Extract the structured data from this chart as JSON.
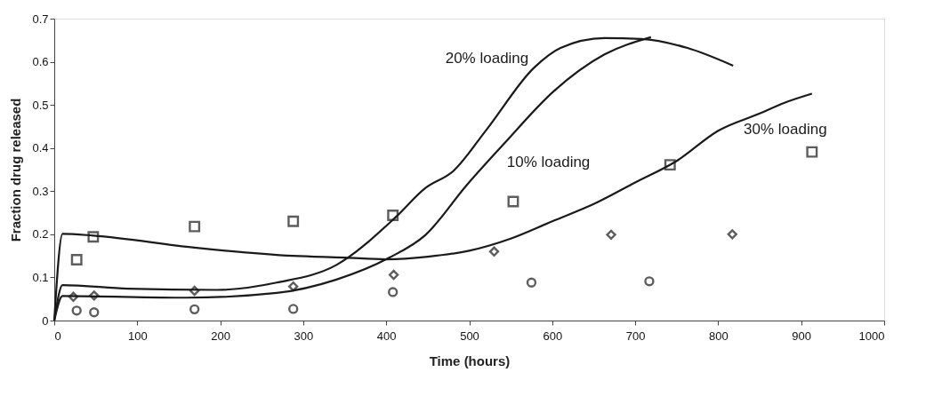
{
  "chart_data": {
    "type": "line",
    "xlabel": "Time (hours)",
    "ylabel": "Fraction drug released",
    "xlim": [
      0,
      1000
    ],
    "xticks": [
      0,
      100,
      200,
      300,
      400,
      500,
      600,
      700,
      800,
      900,
      1000
    ],
    "ylim": [
      0,
      0.7
    ],
    "yticks": [
      0,
      0.1,
      0.2,
      0.3,
      0.4,
      0.5,
      0.6,
      0.7
    ],
    "grid": false,
    "line_style": "solid",
    "series": [
      {
        "name": "20% loading",
        "color": "#1a1a1a",
        "marker": "none",
        "x": [
          0,
          10,
          89,
          196,
          268,
          340,
          411,
          447,
          481,
          521,
          578,
          610,
          663,
          707,
          763,
          818
        ],
        "values": [
          0,
          0.082,
          0.074,
          0.071,
          0.088,
          0.129,
          0.239,
          0.307,
          0.347,
          0.443,
          0.586,
          0.632,
          0.655,
          0.653,
          0.632,
          0.591
        ]
      },
      {
        "name": "10% loading",
        "color": "#1a1a1a",
        "marker": "none",
        "x": [
          0,
          10,
          160,
          268,
          340,
          404,
          447,
          497,
          541,
          602,
          663,
          719
        ],
        "values": [
          0,
          0.057,
          0.053,
          0.064,
          0.095,
          0.146,
          0.198,
          0.314,
          0.408,
          0.532,
          0.617,
          0.657
        ]
      },
      {
        "name": "30% loading",
        "color": "#1a1a1a",
        "marker": "none",
        "x": [
          0,
          10,
          47,
          169,
          288,
          350,
          400,
          450,
          500,
          550,
          600,
          650,
          700,
          750,
          800,
          850,
          880,
          913
        ],
        "values": [
          0,
          0.201,
          0.197,
          0.169,
          0.15,
          0.146,
          0.142,
          0.148,
          0.162,
          0.19,
          0.23,
          0.27,
          0.32,
          0.37,
          0.44,
          0.48,
          0.505,
          0.526
        ]
      },
      {
        "type": "scatter",
        "color": "#1a1a1a",
        "marker": "square",
        "x": [
          27,
          47,
          169,
          288,
          408,
          553,
          742,
          913
        ],
        "values": [
          0.141,
          0.194,
          0.218,
          0.23,
          0.244,
          0.276,
          0.361,
          0.391
        ]
      },
      {
        "type": "scatter",
        "color": "#1a1a1a",
        "marker": "diamond",
        "x": [
          23,
          48,
          169,
          288,
          409,
          530,
          671,
          817
        ],
        "values": [
          0.055,
          0.058,
          0.069,
          0.079,
          0.106,
          0.16,
          0.199,
          0.2
        ]
      },
      {
        "type": "scatter",
        "color": "#1a1a1a",
        "marker": "circle",
        "x": [
          27,
          48,
          169,
          288,
          408,
          575,
          717
        ],
        "values": [
          0.023,
          0.019,
          0.026,
          0.027,
          0.066,
          0.088,
          0.091
        ]
      }
    ]
  }
}
